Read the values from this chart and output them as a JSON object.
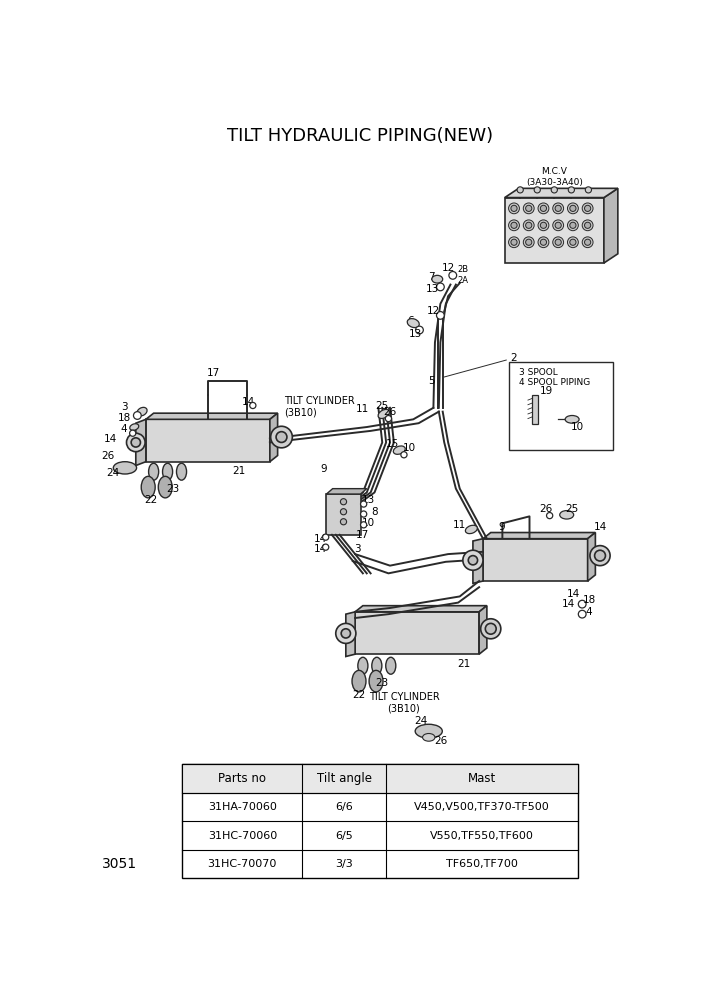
{
  "title": "TILT HYDRAULIC PIPING(NEW)",
  "page_number": "3051",
  "bg": "#ffffff",
  "line_color": "#2a2a2a",
  "title_fontsize": 13,
  "table": {
    "headers": [
      "Parts no",
      "Tilt angle",
      "Mast"
    ],
    "rows": [
      [
        "31HA-70060",
        "6/6",
        "V450,V500,TF370-TF500"
      ],
      [
        "31HC-70060",
        "6/5",
        "V550,TF550,TF600"
      ],
      [
        "31HC-70070",
        "3/3",
        "TF650,TF700"
      ]
    ]
  }
}
